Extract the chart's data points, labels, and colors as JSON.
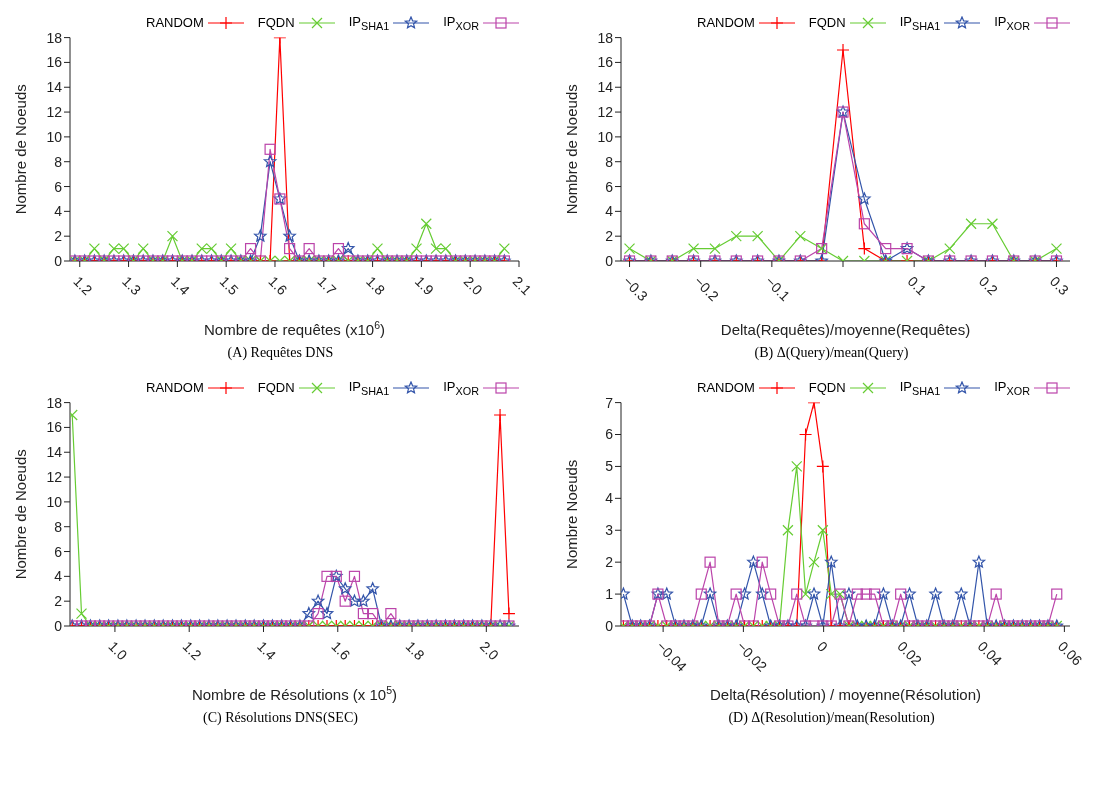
{
  "chart_data": [
    {
      "type": "line",
      "xlabel": "Nombre de requêtes (x10$^{6}$)",
      "ylabel": "Nombre de Noeuds",
      "legend": "top right",
      "annotations": [
        "(A) Requêtes DNS"
      ],
      "x": [
        1.19,
        1.21,
        1.23,
        1.25,
        1.27,
        1.29,
        1.31,
        1.33,
        1.35,
        1.37,
        1.39,
        1.41,
        1.43,
        1.45,
        1.47,
        1.49,
        1.51,
        1.53,
        1.55,
        1.57,
        1.59,
        1.61,
        1.63,
        1.65,
        1.67,
        1.69,
        1.71,
        1.73,
        1.75,
        1.77,
        1.79,
        1.81,
        1.83,
        1.85,
        1.87,
        1.89,
        1.91,
        1.93,
        1.95,
        1.97,
        1.99,
        2.01,
        2.03,
        2.05,
        2.07
      ],
      "xlim": [
        1.18,
        2.1
      ],
      "xticks": [
        1.2,
        1.3,
        1.4,
        1.5,
        1.6,
        1.7,
        1.8,
        1.9,
        {
          "value": 2,
          "label": "2.0"
        },
        2.1
      ],
      "ylim": [
        0,
        18
      ],
      "yticks": [
        0,
        2,
        4,
        6,
        8,
        10,
        12,
        14,
        16,
        18
      ],
      "series": [
        {
          "name": "RANDOM",
          "color": "#ff0000",
          "marker": "cross",
          "values": [
            0,
            0,
            0,
            0,
            0,
            0,
            0,
            0,
            0,
            0,
            0,
            0,
            0,
            0,
            0,
            0,
            0,
            0,
            0,
            0,
            0,
            18,
            0,
            0,
            0,
            0,
            0,
            0,
            0,
            0,
            0,
            0,
            0,
            0,
            0,
            0,
            0,
            0,
            0,
            0,
            0,
            0,
            0,
            0,
            0
          ]
        },
        {
          "name": "FQDN",
          "color": "#66cc33",
          "marker": "cross",
          "values": [
            0,
            0,
            1,
            0,
            1,
            1,
            0,
            1,
            0,
            0,
            2,
            0,
            0,
            1,
            1,
            0,
            1,
            0,
            0,
            0,
            0,
            0,
            0,
            0,
            0,
            0,
            0,
            0,
            0,
            0,
            0,
            1,
            0,
            0,
            0,
            1,
            3,
            1,
            1,
            0,
            0,
            0,
            0,
            0,
            1
          ]
        },
        {
          "name": "IP$_{SHA1}$",
          "color": "#3355aa",
          "marker": "star",
          "values": [
            0,
            0,
            0,
            0,
            0,
            0,
            0,
            0,
            0,
            0,
            0,
            0,
            0,
            0,
            0,
            0,
            0,
            0,
            0,
            2,
            8,
            5,
            2,
            0,
            0,
            0,
            0,
            0,
            1,
            0,
            0,
            0,
            0,
            0,
            0,
            0,
            0,
            0,
            0,
            0,
            0,
            0,
            0,
            0,
            0
          ]
        },
        {
          "name": "IP$_{XOR}$",
          "color": "#bb44aa",
          "marker": "square",
          "values": [
            0,
            0,
            0,
            0,
            0,
            0,
            0,
            0,
            0,
            0,
            0,
            0,
            0,
            0,
            0,
            0,
            0,
            0,
            1,
            0,
            9,
            5,
            1,
            0,
            1,
            0,
            0,
            1,
            0,
            0,
            0,
            0,
            0,
            0,
            0,
            0,
            0,
            0,
            0,
            0,
            0,
            0,
            0,
            0,
            0
          ]
        }
      ]
    },
    {
      "type": "line",
      "xlabel": "Delta(Requêtes)/moyenne(Requêtes)",
      "ylabel": "Nombre de Noeuds",
      "legend": "top right",
      "annotations": [
        "(B) Δ(Query)/mean(Query)"
      ],
      "x": [
        -0.3,
        -0.27,
        -0.24,
        -0.21,
        -0.18,
        -0.15,
        -0.12,
        -0.09,
        -0.06,
        -0.03,
        0,
        0.03,
        0.06,
        0.09,
        0.12,
        0.15,
        0.18,
        0.21,
        0.24,
        0.27,
        0.3
      ],
      "xlim": [
        -0.312,
        0.319
      ],
      "xticks": [
        {
          "value": -0.3,
          "label": "−0.3"
        },
        {
          "value": -0.2,
          "label": "−0.2"
        },
        {
          "value": -0.1,
          "label": "−0.1"
        },
        {
          "value": 0,
          "label": null
        },
        0.1,
        0.2,
        0.3
      ],
      "ylim": [
        0,
        18
      ],
      "yticks": [
        0,
        2,
        4,
        6,
        8,
        10,
        12,
        14,
        16,
        18
      ],
      "series": [
        {
          "name": "RANDOM",
          "color": "#ff0000",
          "marker": "cross",
          "values": [
            0,
            0,
            0,
            0,
            0,
            0,
            0,
            0,
            0,
            0,
            17,
            1,
            0,
            0,
            0,
            0,
            0,
            0,
            0,
            0,
            0
          ]
        },
        {
          "name": "FQDN",
          "color": "#66cc33",
          "marker": "cross",
          "values": [
            1,
            0,
            0,
            1,
            1,
            2,
            2,
            0,
            2,
            1,
            0,
            0,
            0,
            0,
            0,
            1,
            3,
            3,
            0,
            0,
            1
          ]
        },
        {
          "name": "IP$_{SHA1}$",
          "color": "#3355aa",
          "marker": "star",
          "values": [
            0,
            0,
            0,
            0,
            0,
            0,
            0,
            0,
            0,
            0,
            12,
            5,
            0,
            1,
            0,
            0,
            0,
            0,
            0,
            0,
            0
          ]
        },
        {
          "name": "IP$_{XOR}$",
          "color": "#bb44aa",
          "marker": "square",
          "values": [
            0,
            0,
            0,
            0,
            0,
            0,
            0,
            0,
            0,
            1,
            12,
            3,
            1,
            1,
            0,
            0,
            0,
            0,
            0,
            0,
            0
          ]
        }
      ]
    },
    {
      "type": "line",
      "xlabel": "Nombre de Résolutions (x 10$^{5}$)",
      "ylabel": "Nombre de Noeuds",
      "legend": "top right",
      "annotations": [
        "(C) Résolutions DNS(SEC)"
      ],
      "x": [
        0.885,
        0.91,
        0.934,
        0.959,
        0.983,
        1.008,
        1.032,
        1.057,
        1.081,
        1.106,
        1.13,
        1.155,
        1.179,
        1.204,
        1.228,
        1.253,
        1.277,
        1.302,
        1.326,
        1.351,
        1.375,
        1.4,
        1.424,
        1.449,
        1.473,
        1.498,
        1.522,
        1.547,
        1.571,
        1.596,
        1.62,
        1.645,
        1.669,
        1.694,
        1.718,
        1.743,
        1.767,
        1.792,
        1.816,
        1.841,
        1.865,
        1.89,
        1.914,
        1.939,
        1.963,
        1.988,
        2.012,
        2.037,
        2.061
      ],
      "xlim": [
        0.879,
        2.088
      ],
      "xticks": [
        {
          "value": 1,
          "label": "1.0"
        },
        1.2,
        1.4,
        1.6,
        1.8,
        {
          "value": 2,
          "label": "2.0"
        }
      ],
      "ylim": [
        0,
        18
      ],
      "yticks": [
        0,
        2,
        4,
        6,
        8,
        10,
        12,
        14,
        16,
        18
      ],
      "series": [
        {
          "name": "RANDOM",
          "color": "#ff0000",
          "marker": "cross",
          "values": [
            0,
            0,
            0,
            0,
            0,
            0,
            0,
            0,
            0,
            0,
            0,
            0,
            0,
            0,
            0,
            0,
            0,
            0,
            0,
            0,
            0,
            0,
            0,
            0,
            0,
            0,
            0,
            0,
            0,
            0,
            0,
            0,
            0,
            0,
            0,
            0,
            0,
            0,
            0,
            0,
            0,
            0,
            0,
            0,
            0,
            0,
            0,
            17,
            1
          ]
        },
        {
          "name": "FQDN",
          "color": "#66cc33",
          "marker": "cross",
          "values": [
            17,
            1,
            0,
            0,
            0,
            0,
            0,
            0,
            0,
            0,
            0,
            0,
            0,
            0,
            0,
            0,
            0,
            0,
            0,
            0,
            0,
            0,
            0,
            0,
            0,
            0,
            0,
            0,
            0,
            0,
            0,
            0,
            0,
            0,
            0,
            0,
            0,
            0,
            0,
            0,
            0,
            0,
            0,
            0,
            0,
            0,
            0,
            0,
            0
          ]
        },
        {
          "name": "IP$_{SHA1}$",
          "color": "#3355aa",
          "marker": "star",
          "values": [
            0,
            0,
            0,
            0,
            0,
            0,
            0,
            0,
            0,
            0,
            0,
            0,
            0,
            0,
            0,
            0,
            0,
            0,
            0,
            0,
            0,
            0,
            0,
            0,
            0,
            0,
            1,
            2,
            1,
            4,
            3,
            2,
            2,
            3,
            0,
            0,
            0,
            0,
            0,
            0,
            0,
            0,
            0,
            0,
            0,
            0,
            0,
            0,
            0
          ]
        },
        {
          "name": "IP$_{XOR}$",
          "color": "#bb44aa",
          "marker": "square",
          "values": [
            0,
            0,
            0,
            0,
            0,
            0,
            0,
            0,
            0,
            0,
            0,
            0,
            0,
            0,
            0,
            0,
            0,
            0,
            0,
            0,
            0,
            0,
            0,
            0,
            0,
            0,
            0,
            1,
            4,
            4,
            2,
            4,
            1,
            1,
            0,
            1,
            0,
            0,
            0,
            0,
            0,
            0,
            0,
            0,
            0,
            0,
            0,
            0,
            0
          ]
        }
      ]
    },
    {
      "type": "line",
      "xlabel": "Delta(Résolution) / moyenne(Résolution)",
      "ylabel": "Nombre Noeuds",
      "legend": "top right",
      "annotations": [
        "(D) Δ(Resolution)/mean(Resolution)"
      ],
      "x": [
        -0.0499,
        -0.0477,
        -0.0456,
        -0.0434,
        -0.0413,
        -0.0391,
        -0.0369,
        -0.0348,
        -0.0326,
        -0.0305,
        -0.0283,
        -0.0261,
        -0.024,
        -0.0218,
        -0.0197,
        -0.0175,
        -0.0153,
        -0.0132,
        -0.011,
        -0.0089,
        -0.0067,
        -0.0045,
        -0.0024,
        -0.0002,
        0.0019,
        0.0041,
        0.0063,
        0.0084,
        0.0106,
        0.0127,
        0.0149,
        0.0171,
        0.0192,
        0.0214,
        0.0235,
        0.0257,
        0.0279,
        0.03,
        0.0322,
        0.0343,
        0.0365,
        0.0387,
        0.0408,
        0.043,
        0.0451,
        0.0473,
        0.0495,
        0.0516,
        0.0538,
        0.0559,
        0.0581
      ],
      "xlim": [
        -0.0505,
        0.0614
      ],
      "xticks": [
        {
          "value": -0.04,
          "label": "−0.04"
        },
        {
          "value": -0.02,
          "label": "−0.02"
        },
        0,
        0.02,
        0.04,
        0.06
      ],
      "ylim": [
        0,
        7
      ],
      "yticks": [
        0,
        1,
        2,
        3,
        4,
        5,
        6,
        7
      ],
      "series": [
        {
          "name": "RANDOM",
          "color": "#ff0000",
          "marker": "cross",
          "values": [
            0,
            0,
            0,
            0,
            0,
            0,
            0,
            0,
            0,
            0,
            0,
            0,
            0,
            0,
            0,
            0,
            0,
            0,
            0,
            0,
            0,
            6,
            7,
            5,
            0,
            0,
            0,
            0,
            0,
            0,
            0,
            0,
            0,
            0,
            0,
            0,
            0,
            0,
            0,
            0,
            0,
            0,
            0,
            0,
            0,
            0,
            0,
            0,
            0,
            0,
            0
          ]
        },
        {
          "name": "FQDN",
          "color": "#66cc33",
          "marker": "cross",
          "values": [
            0,
            0,
            0,
            0,
            0,
            0,
            0,
            0,
            0,
            0,
            0,
            0,
            0,
            0,
            0,
            0,
            0,
            0,
            0,
            3,
            5,
            1,
            2,
            3,
            1,
            1,
            0,
            0,
            0,
            0,
            0,
            0,
            0,
            0,
            0,
            0,
            0,
            0,
            0,
            0,
            0,
            0,
            0,
            0,
            0,
            0,
            0,
            0,
            0,
            0,
            0
          ]
        },
        {
          "name": "IP$_{SHA1}$",
          "color": "#3355aa",
          "marker": "star",
          "values": [
            1,
            0,
            0,
            0,
            1,
            1,
            0,
            0,
            0,
            0,
            1,
            0,
            0,
            0,
            1,
            2,
            1,
            0,
            0,
            0,
            0,
            0,
            1,
            0,
            2,
            0,
            1,
            0,
            0,
            0,
            1,
            0,
            0,
            1,
            0,
            0,
            1,
            0,
            0,
            1,
            0,
            2,
            0,
            0,
            0,
            0,
            0,
            0,
            0,
            0,
            0
          ]
        },
        {
          "name": "IP$_{XOR}$",
          "color": "#bb44aa",
          "marker": "square",
          "values": [
            0,
            0,
            0,
            0,
            1,
            0,
            0,
            0,
            0,
            1,
            2,
            0,
            0,
            1,
            0,
            0,
            2,
            1,
            0,
            0,
            1,
            0,
            0,
            0,
            0,
            1,
            0,
            1,
            1,
            1,
            0,
            0,
            1,
            0,
            0,
            0,
            0,
            0,
            0,
            0,
            0,
            0,
            0,
            1,
            0,
            0,
            0,
            0,
            0,
            0,
            1
          ]
        }
      ]
    }
  ]
}
